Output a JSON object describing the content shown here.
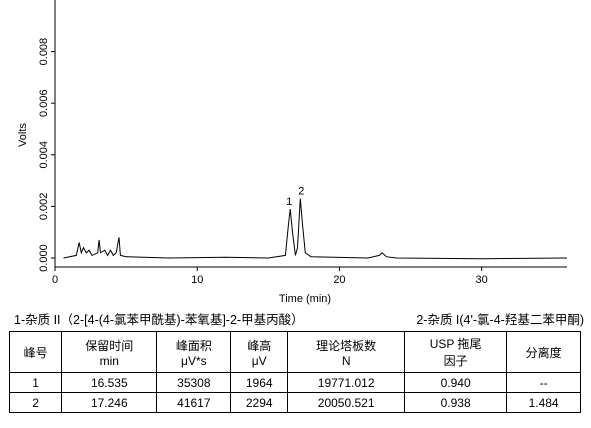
{
  "chart_data": {
    "type": "line",
    "x_label": "Time (min)",
    "y_label": "Volts",
    "xlim": [
      0,
      36
    ],
    "ylim": [
      -0.00035,
      0.01
    ],
    "xticks": [
      0,
      10,
      20,
      30
    ],
    "yticks": [
      {
        "value": 0,
        "label": "0.000"
      },
      {
        "value": 0.002,
        "label": "0.002"
      },
      {
        "value": 0.004,
        "label": "0.004"
      },
      {
        "value": 0.006,
        "label": "0.006"
      },
      {
        "value": 0.008,
        "label": "0.008"
      }
    ],
    "series": [
      {
        "color": "#000000",
        "x": [
          0.6,
          1.5,
          1.7,
          1.85,
          2.0,
          2.2,
          2.4,
          2.6,
          3.0,
          3.1,
          3.2,
          3.5,
          3.7,
          3.9,
          4.1,
          4.3,
          4.5,
          4.6,
          5,
          8,
          12,
          15,
          16.2,
          16.4,
          16.535,
          16.7,
          16.9,
          17.05,
          17.246,
          17.4,
          17.6,
          18,
          22,
          22.8,
          23.0,
          23.3,
          24,
          30,
          36
        ],
        "values": [
          0,
          0.0001,
          0.0006,
          0.0002,
          0.0004,
          0.0002,
          0.0003,
          0.0001,
          0.0002,
          0.0007,
          0.0002,
          0.0003,
          0.0001,
          0.0003,
          0.0001,
          0.0002,
          0.0008,
          0.0001,
          5e-05,
          0,
          3e-05,
          0,
          0.0001,
          0.0012,
          0.0019,
          0.001,
          0.0001,
          0.0004,
          0.0023,
          0.0013,
          0.0002,
          5e-05,
          0,
          0.0001,
          0.0002,
          5e-05,
          0,
          -3e-05,
          0
        ]
      }
    ],
    "annotations": [
      {
        "text": "1",
        "x": 16.535,
        "y": 0.0019
      },
      {
        "text": "2",
        "x": 17.246,
        "y": 0.0023
      }
    ]
  },
  "caption": [
    "1-杂质 II（2-[4-(4-氯苯甲酰基)-苯氧基]-2-甲基丙酸）",
    "2-杂质 I(4'-氯-4-羟基二苯甲酮)"
  ],
  "table": {
    "header": [
      [
        "峰号"
      ],
      [
        "保留时间",
        "min"
      ],
      [
        "峰面积",
        "μV*s"
      ],
      [
        "峰高",
        "μV"
      ],
      [
        "理论塔板数",
        "N"
      ],
      [
        "USP 拖尾",
        "因子"
      ],
      [
        "分离度"
      ]
    ],
    "rows": [
      [
        "1",
        "16.535",
        "35308",
        "1964",
        "19771.012",
        "0.940",
        "--"
      ],
      [
        "2",
        "17.246",
        "41617",
        "2294",
        "20050.521",
        "0.938",
        "1.484"
      ]
    ]
  }
}
